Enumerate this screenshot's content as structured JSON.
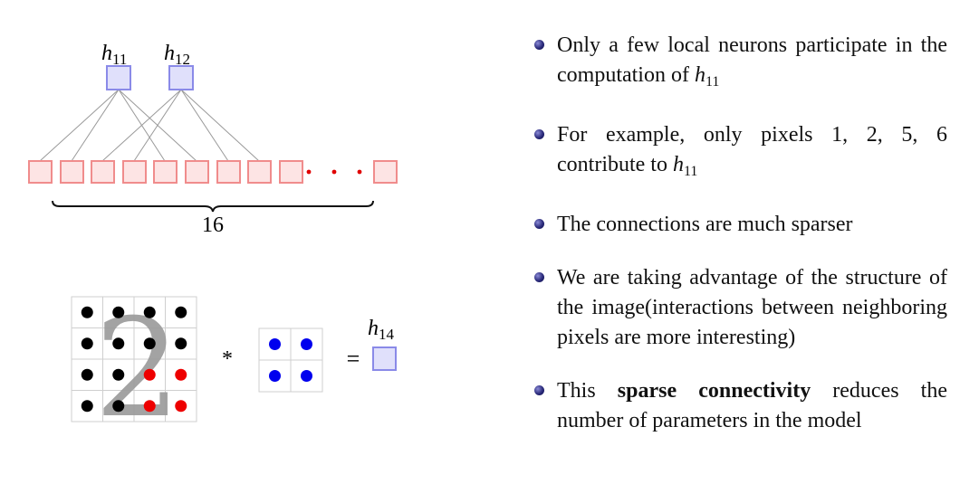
{
  "diagram": {
    "top_labels": {
      "h11": {
        "base": "h",
        "sub": "11"
      },
      "h12": {
        "base": "h",
        "sub": "12"
      }
    },
    "brace_label": "16",
    "operators": {
      "conv": "*",
      "equals": "="
    },
    "output_label": {
      "base": "h",
      "sub": "14"
    },
    "digit": "2",
    "colors": {
      "hidden_fill": "#e0e0fb",
      "hidden_stroke": "#8a8ae8",
      "input_fill": "#fde4e4",
      "input_stroke": "#f08c8c",
      "image_dot": "#000000",
      "highlight_dot": "#ee0000",
      "kernel_dot": "#0000ee"
    }
  },
  "bullets": [
    {
      "parts": [
        {
          "text": "Only a few local neurons participate in the computation of "
        },
        {
          "math": "h",
          "sub": "11"
        }
      ]
    },
    {
      "parts": [
        {
          "text": "For example, only pixels 1, 2, 5, 6 contribute to "
        },
        {
          "math": "h",
          "sub": "11"
        }
      ]
    },
    {
      "parts": [
        {
          "text": "The connections are much sparser"
        }
      ]
    },
    {
      "parts": [
        {
          "text": "We are taking advantage of the structure of the image(interactions between neighboring pixels are more interesting)"
        }
      ]
    },
    {
      "parts": [
        {
          "text": "This "
        },
        {
          "bold": "sparse connectivity"
        },
        {
          "text": " reduces the number of parameters in the model"
        }
      ]
    }
  ]
}
